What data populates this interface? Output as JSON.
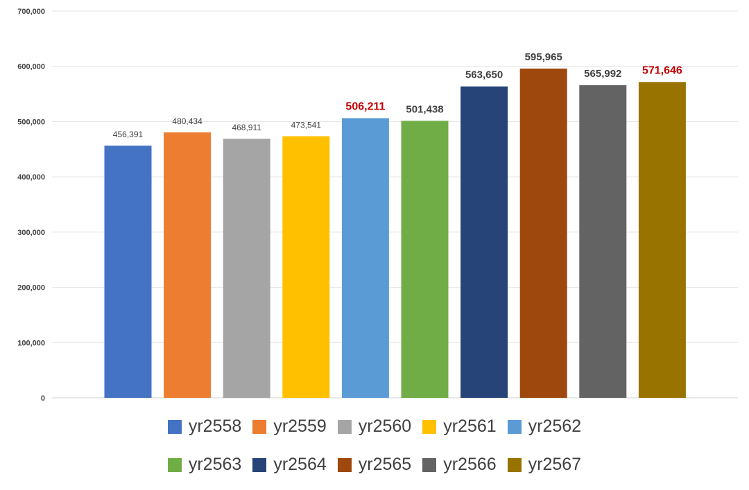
{
  "chart_data": {
    "type": "bar",
    "categories": [
      "yr2558",
      "yr2559",
      "yr2560",
      "yr2561",
      "yr2562",
      "yr2563",
      "yr2564",
      "yr2565",
      "yr2566",
      "yr2567"
    ],
    "values": [
      456391,
      480434,
      468911,
      473541,
      506211,
      501438,
      563650,
      595965,
      565992,
      571646
    ],
    "data_labels": [
      "456,391",
      "480,434",
      "468,911",
      "473,541",
      "506,211",
      "501,438",
      "563,650",
      "595,965",
      "565,992",
      "571,646"
    ],
    "colors": [
      "#4472C4",
      "#ED7D31",
      "#A5A5A5",
      "#FFC000",
      "#5B9BD5",
      "#70AD47",
      "#264478",
      "#9E480E",
      "#636363",
      "#997300"
    ],
    "label_styles": [
      "normal",
      "normal",
      "normal",
      "normal",
      "highlight",
      "bold",
      "bold",
      "bold",
      "bold",
      "highlight"
    ],
    "highlight_color": "#C00000",
    "ylim": [
      0,
      700000
    ],
    "y_ticks": [
      0,
      100000,
      200000,
      300000,
      400000,
      500000,
      600000,
      700000
    ],
    "y_tick_labels": [
      "0",
      "100,000",
      "200,000",
      "300,000",
      "400,000",
      "500,000",
      "600,000",
      "700,000"
    ],
    "grid": true,
    "legend": "bottom",
    "title": "",
    "xlabel": "",
    "ylabel": ""
  }
}
